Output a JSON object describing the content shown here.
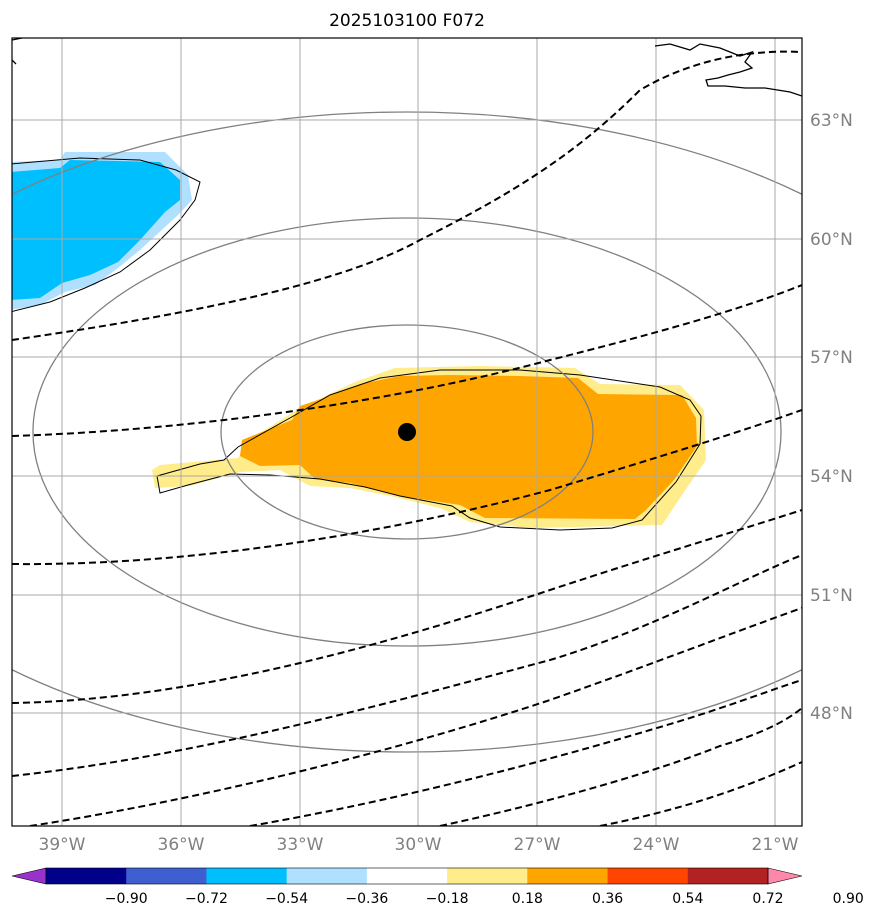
{
  "title": "2025103100 F072",
  "map": {
    "projection": "lambert-conformal",
    "lon_labels": [
      "39°W",
      "36°W",
      "33°W",
      "30°W",
      "27°W",
      "24°W",
      "21°W"
    ],
    "lat_labels": [
      "63°N",
      "60°N",
      "57°N",
      "54°N",
      "51°N",
      "48°N"
    ],
    "gridline_color": "#a9a9a9",
    "label_color": "#808080",
    "center_marker": {
      "name": "storm-center",
      "color": "#000000",
      "lon": -30.2,
      "lat": 54.9
    },
    "positive_region": {
      "name": "positive-anomaly-region",
      "max_level": "0.54"
    },
    "negative_region": {
      "name": "negative-anomaly-region",
      "min_level": "-0.54"
    }
  },
  "colorbar": {
    "levels": [
      "−0.90",
      "−0.72",
      "−0.54",
      "−0.36",
      "−0.18",
      "0.18",
      "0.36",
      "0.54",
      "0.72",
      "0.90"
    ],
    "colors": [
      "#9932cc",
      "#00008b",
      "#3d5fcf",
      "#00bfff",
      "#b0e0ff",
      "#ffffff",
      "#ffec8b",
      "#ffa500",
      "#ff4500",
      "#b22222",
      "#ff88aa"
    ],
    "extend": "both"
  }
}
